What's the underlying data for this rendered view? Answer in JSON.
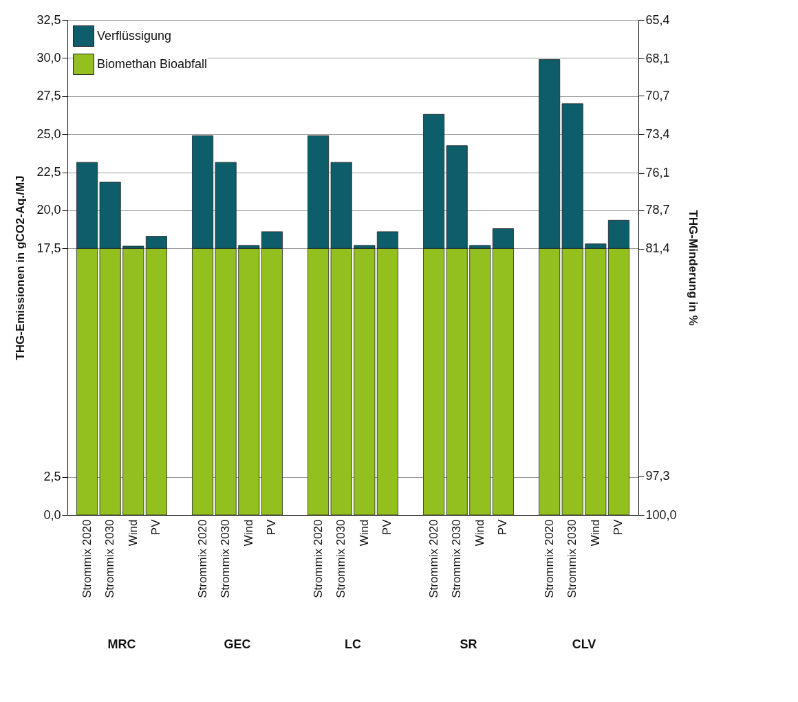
{
  "chart_data": {
    "type": "bar",
    "stacked": true,
    "ylabel": "THG-Emissionen in gCO2-Aq./MJ",
    "y2label": "THG-Minderung in %",
    "categories": [
      "Strommix 2020",
      "Strommix 2030",
      "Wind",
      "PV",
      "Strommix 2020",
      "Strommix 2030",
      "Wind",
      "PV",
      "Strommix 2020",
      "Strommix 2030",
      "Wind",
      "PV",
      "Strommix 2020",
      "Strommix 2030",
      "Wind",
      "PV",
      "Strommix 2020",
      "Strommix 2030",
      "Wind",
      "PV"
    ],
    "series": [
      {
        "name": "Biomethan Bioabfall",
        "color": "#93c01f",
        "values": [
          17.5,
          17.5,
          17.5,
          17.5,
          17.5,
          17.5,
          17.5,
          17.5,
          17.5,
          17.5,
          17.5,
          17.5,
          17.5,
          17.5,
          17.5,
          17.5,
          17.5,
          17.5,
          17.5,
          17.5
        ]
      },
      {
        "name": "Verflüssigung",
        "color": "#0d5e6a",
        "values": [
          5.65,
          4.35,
          0.15,
          0.8,
          7.4,
          5.65,
          0.2,
          1.1,
          7.4,
          5.65,
          0.2,
          1.1,
          8.8,
          6.75,
          0.2,
          1.3,
          12.4,
          9.5,
          0.3,
          1.85
        ]
      }
    ],
    "ylim": [
      0,
      32.5
    ],
    "yticks": [
      {
        "value": 0,
        "label": "0,0"
      },
      {
        "value": 2.5,
        "label": "2,5"
      },
      {
        "value": 17.5,
        "label": "17,5"
      },
      {
        "value": 20,
        "label": "20,0"
      },
      {
        "value": 22.5,
        "label": "22,5"
      },
      {
        "value": 25,
        "label": "25,0"
      },
      {
        "value": 27.5,
        "label": "27,5"
      },
      {
        "value": 30,
        "label": "30,0"
      },
      {
        "value": 32.5,
        "label": "32,5"
      }
    ],
    "y2lim": [
      100,
      65.4
    ],
    "y2ticks": [
      {
        "value": 100,
        "label": "100,0"
      },
      {
        "value": 97.3,
        "label": "97,3"
      },
      {
        "value": 81.4,
        "label": "81,4"
      },
      {
        "value": 78.7,
        "label": "78,7"
      },
      {
        "value": 76.1,
        "label": "76,1"
      },
      {
        "value": 73.4,
        "label": "73,4"
      },
      {
        "value": 70.7,
        "label": "70,7"
      },
      {
        "value": 68.1,
        "label": "68,1"
      },
      {
        "value": 65.4,
        "label": "65,4"
      }
    ],
    "grid": "y",
    "legend": "top left",
    "annotations": [
      "MRC",
      "GEC",
      "LC",
      "SR",
      "CLV"
    ]
  }
}
